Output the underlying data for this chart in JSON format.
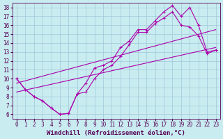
{
  "xlabel": "Windchill (Refroidissement éolien,°C)",
  "xlim": [
    -0.5,
    23.5
  ],
  "ylim": [
    5.5,
    18.5
  ],
  "xticks": [
    0,
    1,
    2,
    3,
    4,
    5,
    6,
    7,
    8,
    9,
    10,
    11,
    12,
    13,
    14,
    15,
    16,
    17,
    18,
    19,
    20,
    21,
    22,
    23
  ],
  "yticks": [
    6,
    7,
    8,
    9,
    10,
    11,
    12,
    13,
    14,
    15,
    16,
    17,
    18
  ],
  "bg_color": "#c8ecf0",
  "grid_color": "#a0c8d8",
  "line_color": "#aa00aa",
  "line1_x": [
    0,
    1,
    2,
    3,
    4,
    5,
    6,
    7,
    8,
    9,
    10,
    11,
    12,
    13,
    14,
    15,
    16,
    17,
    18,
    19,
    20,
    21,
    22,
    23
  ],
  "line1_y": [
    10.0,
    8.8,
    8.0,
    7.5,
    6.7,
    6.0,
    6.1,
    8.3,
    8.5,
    10.0,
    11.0,
    11.5,
    12.5,
    13.8,
    15.2,
    15.2,
    16.2,
    16.8,
    17.5,
    16.0,
    15.8,
    14.8,
    12.8,
    13.2
  ],
  "line2_x": [
    0,
    1,
    2,
    3,
    4,
    5,
    6,
    7,
    8,
    9,
    10,
    11,
    12,
    13,
    14,
    15,
    16,
    17,
    18,
    19,
    20,
    21,
    22,
    23
  ],
  "line2_y": [
    10.0,
    8.8,
    8.0,
    7.5,
    6.7,
    6.0,
    6.1,
    8.3,
    9.5,
    11.2,
    11.5,
    12.0,
    13.5,
    14.2,
    15.5,
    15.5,
    16.5,
    17.5,
    18.2,
    17.0,
    18.0,
    16.0,
    13.0,
    13.2
  ],
  "line3_x": [
    0,
    23
  ],
  "line3_y": [
    8.5,
    13.5
  ],
  "line4_x": [
    0,
    23
  ],
  "line4_y": [
    9.5,
    15.5
  ],
  "font_color": "#550055",
  "tick_fontsize": 5.5,
  "label_fontsize": 6.5
}
